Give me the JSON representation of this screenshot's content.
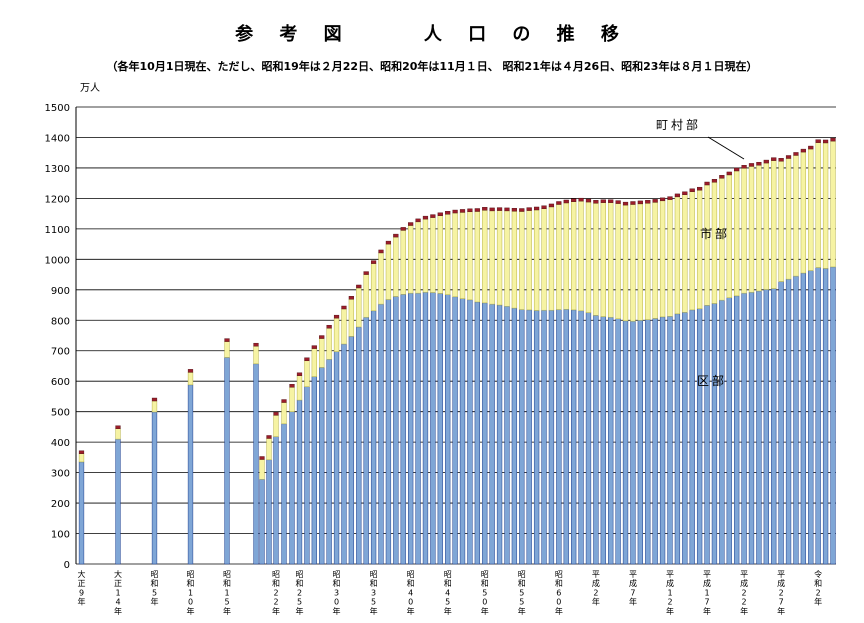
{
  "chart_data": {
    "type": "bar",
    "stacked": true,
    "title": "参 考 図　　 人 口 の 推 移",
    "subtitle": "（各年10月1日現在、ただし、昭和19年は２月22日、昭和20年は11月１日、 昭和21年は４月26日、昭和23年は８月１日現在）",
    "unit_label": "万人",
    "ylim": [
      0,
      1500
    ],
    "yticks": [
      "0",
      "100",
      "200",
      "300",
      "400",
      "500",
      "600",
      "700",
      "800",
      "900",
      "1000",
      "1100",
      "1200",
      "1300",
      "1400",
      "1500"
    ],
    "grid": true,
    "x_tick_labels": [
      "大正9年",
      "大正14年",
      "昭和5年",
      "昭和10年",
      "昭和15年",
      "昭和22年",
      "昭和25年",
      "昭和30年",
      "昭和35年",
      "昭和40年",
      "昭和45年",
      "昭和50年",
      "昭和55年",
      "昭和60年",
      "平成2年",
      "平成7年",
      "平成12年",
      "平成17年",
      "平成22年",
      "平成27年",
      "令和2年"
    ],
    "series_labels": [
      "区部",
      "市部",
      "町村部"
    ],
    "colors": {
      "ku": "#7fa6d6",
      "shi": "#f6f3a3",
      "chouson": "#9b1d2a",
      "edge": "#1f3f8f"
    },
    "groups": [
      {
        "x": [
          "1920",
          "1925",
          "1930",
          "1935",
          "1940",
          "1944",
          "1945",
          "1946",
          "1947",
          "1948",
          "1949"
        ],
        "ku": [
          335,
          410,
          499,
          588,
          678,
          657,
          278,
          342,
          418,
          460,
          500
        ],
        "shi": [
          27,
          34,
          36,
          41,
          52,
          58,
          65,
          70,
          70,
          70,
          80
        ],
        "chouson": [
          8,
          7,
          8,
          7,
          8,
          7,
          5,
          6,
          7,
          8,
          9
        ]
      },
      {
        "x": [
          "1950",
          "1951",
          "1952",
          "1953",
          "1954",
          "1955",
          "1956",
          "1957",
          "1958",
          "1959",
          "1960",
          "1961",
          "1962",
          "1963",
          "1964",
          "1965",
          "1966",
          "1967",
          "1968",
          "1969",
          "1970",
          "1971",
          "1972",
          "1973",
          "1974",
          "1975",
          "1976",
          "1977",
          "1978",
          "1979",
          "1980",
          "1981",
          "1982",
          "1983",
          "1984",
          "1985",
          "1986",
          "1987",
          "1988",
          "1989",
          "1990",
          "1991",
          "1992",
          "1993",
          "1994",
          "1995",
          "1996",
          "1997",
          "1998",
          "1999",
          "2000",
          "2001",
          "2002",
          "2003",
          "2004",
          "2005",
          "2006",
          "2007",
          "2008",
          "2009",
          "2010",
          "2011",
          "2012",
          "2013",
          "2014",
          "2015",
          "2016",
          "2017",
          "2018",
          "2019",
          "2020",
          "2021",
          "2022"
        ],
        "ku": [
          538,
          582,
          615,
          645,
          672,
          697,
          722,
          747,
          778,
          810,
          831,
          853,
          868,
          878,
          885,
          889,
          889,
          892,
          891,
          888,
          884,
          877,
          871,
          867,
          860,
          857,
          853,
          850,
          846,
          840,
          835,
          834,
          832,
          833,
          833,
          835,
          836,
          834,
          831,
          825,
          816,
          812,
          810,
          805,
          798,
          797,
          800,
          802,
          806,
          811,
          813,
          821,
          826,
          834,
          838,
          849,
          855,
          866,
          874,
          880,
          889,
          892,
          896,
          901,
          904,
          927,
          935,
          945,
          955,
          963,
          973,
          970,
          975
        ],
        "shi": [
          80,
          85,
          92,
          95,
          102,
          110,
          115,
          122,
          128,
          140,
          155,
          168,
          182,
          195,
          210,
          222,
          234,
          240,
          246,
          255,
          264,
          275,
          283,
          289,
          297,
          304,
          306,
          310,
          313,
          318,
          322,
          326,
          330,
          333,
          339,
          345,
          349,
          355,
          360,
          363,
          368,
          374,
          376,
          378,
          380,
          383,
          382,
          382,
          381,
          381,
          383,
          384,
          386,
          388,
          389,
          395,
          398,
          400,
          403,
          410,
          410,
          413,
          413,
          415,
          420,
          395,
          396,
          396,
          397,
          399,
          410,
          412,
          413
        ],
        "chouson": [
          10,
          10,
          10,
          10,
          10,
          10,
          10,
          10,
          10,
          10,
          10,
          10,
          10,
          10,
          10,
          10,
          10,
          10,
          10,
          10,
          10,
          10,
          10,
          10,
          10,
          10,
          10,
          10,
          10,
          10,
          10,
          10,
          10,
          10,
          10,
          10,
          10,
          10,
          10,
          10,
          10,
          10,
          10,
          10,
          10,
          10,
          10,
          10,
          10,
          10,
          10,
          10,
          10,
          10,
          10,
          10,
          10,
          10,
          10,
          10,
          10,
          10,
          10,
          10,
          10,
          10,
          10,
          10,
          10,
          10,
          10,
          10,
          10
        ]
      }
    ]
  }
}
